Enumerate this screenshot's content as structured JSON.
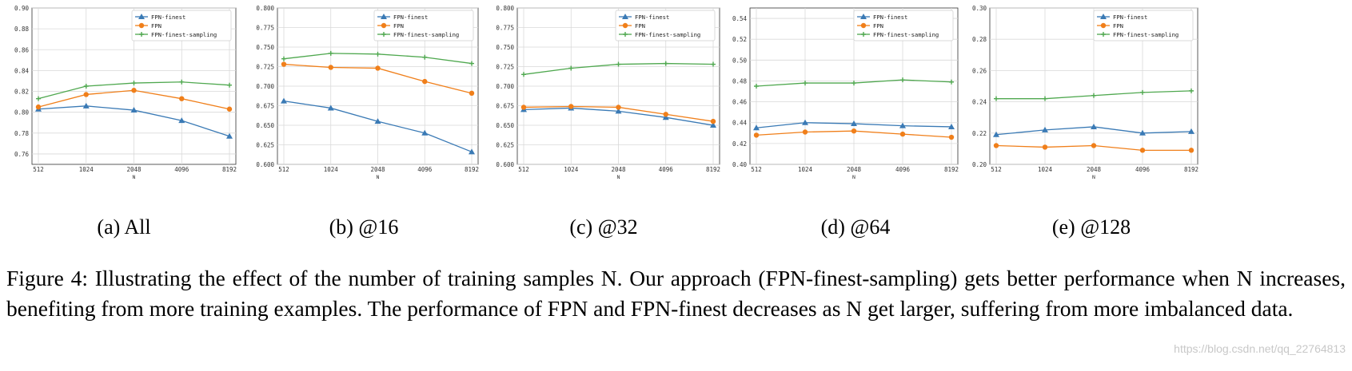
{
  "chart_data": [
    {
      "type": "line",
      "subcaption": "(a) All",
      "x": [
        "512",
        "1024",
        "2048",
        "4096",
        "8192"
      ],
      "xlabel": "N",
      "ylim": [
        0.75,
        0.9
      ],
      "yticks": [
        "0.76",
        "0.78",
        "0.80",
        "0.82",
        "0.84",
        "0.86",
        "0.88",
        "0.90"
      ],
      "grid": true,
      "legend_position": "top-right",
      "series": [
        {
          "name": "FPN-finest",
          "values": [
            0.803,
            0.806,
            0.802,
            0.792,
            0.777
          ]
        },
        {
          "name": "FPN",
          "values": [
            0.805,
            0.817,
            0.821,
            0.813,
            0.803
          ]
        },
        {
          "name": "FPN-finest-sampling",
          "values": [
            0.813,
            0.825,
            0.828,
            0.829,
            0.826
          ]
        }
      ]
    },
    {
      "type": "line",
      "subcaption": "(b) @16",
      "x": [
        "512",
        "1024",
        "2048",
        "4096",
        "8192"
      ],
      "xlabel": "N",
      "ylim": [
        0.6,
        0.8
      ],
      "yticks": [
        "0.600",
        "0.625",
        "0.650",
        "0.675",
        "0.700",
        "0.725",
        "0.750",
        "0.775",
        "0.800"
      ],
      "grid": true,
      "legend_position": "top-right",
      "series": [
        {
          "name": "FPN-finest",
          "values": [
            0.681,
            0.672,
            0.655,
            0.64,
            0.616
          ]
        },
        {
          "name": "FPN",
          "values": [
            0.728,
            0.724,
            0.723,
            0.706,
            0.691
          ]
        },
        {
          "name": "FPN-finest-sampling",
          "values": [
            0.735,
            0.742,
            0.741,
            0.737,
            0.729
          ]
        }
      ]
    },
    {
      "type": "line",
      "subcaption": "(c) @32",
      "x": [
        "512",
        "1024",
        "2048",
        "4096",
        "8192"
      ],
      "xlabel": "N",
      "ylim": [
        0.6,
        0.8
      ],
      "yticks": [
        "0.600",
        "0.625",
        "0.650",
        "0.675",
        "0.700",
        "0.725",
        "0.750",
        "0.775",
        "0.800"
      ],
      "grid": true,
      "legend_position": "top-right",
      "series": [
        {
          "name": "FPN-finest",
          "values": [
            0.67,
            0.672,
            0.668,
            0.66,
            0.65
          ]
        },
        {
          "name": "FPN",
          "values": [
            0.673,
            0.674,
            0.673,
            0.664,
            0.655
          ]
        },
        {
          "name": "FPN-finest-sampling",
          "values": [
            0.715,
            0.723,
            0.728,
            0.729,
            0.728
          ]
        }
      ]
    },
    {
      "type": "line",
      "subcaption": "(d) @64",
      "x": [
        "512",
        "1024",
        "2048",
        "4096",
        "8192"
      ],
      "xlabel": "N",
      "ylim": [
        0.4,
        0.55
      ],
      "yticks": [
        "0.40",
        "0.42",
        "0.44",
        "0.46",
        "0.48",
        "0.50",
        "0.52",
        "0.54"
      ],
      "grid": true,
      "legend_position": "top-right",
      "series": [
        {
          "name": "FPN-finest",
          "values": [
            0.435,
            0.44,
            0.439,
            0.437,
            0.436
          ]
        },
        {
          "name": "FPN",
          "values": [
            0.428,
            0.431,
            0.432,
            0.429,
            0.426
          ]
        },
        {
          "name": "FPN-finest-sampling",
          "values": [
            0.475,
            0.478,
            0.478,
            0.481,
            0.479
          ]
        }
      ]
    },
    {
      "type": "line",
      "subcaption": "(e) @128",
      "x": [
        "512",
        "1024",
        "2048",
        "4096",
        "8192"
      ],
      "xlabel": "N",
      "ylim": [
        0.2,
        0.3
      ],
      "yticks": [
        "0.20",
        "0.22",
        "0.24",
        "0.26",
        "0.28",
        "0.30"
      ],
      "grid": true,
      "legend_position": "top-right",
      "series": [
        {
          "name": "FPN-finest",
          "values": [
            0.219,
            0.222,
            0.224,
            0.22,
            0.221
          ]
        },
        {
          "name": "FPN",
          "values": [
            0.212,
            0.211,
            0.212,
            0.209,
            0.209
          ]
        },
        {
          "name": "FPN-finest-sampling",
          "values": [
            0.242,
            0.242,
            0.244,
            0.246,
            0.247
          ]
        }
      ]
    }
  ],
  "series_colors": [
    "#3a7ab5",
    "#f07f1a",
    "#4fa84f"
  ],
  "series_markers": [
    "triangle",
    "circle",
    "plus"
  ],
  "caption": {
    "text": "Figure 4: Illustrating the effect of the number of training samples N. Our approach (FPN-finest-sampling) gets better performance when N increases, benefiting from more training examples. The performance of FPN and FPN-finest decreases as N get larger, suffering from more imbalanced data."
  },
  "watermark": "https://blog.csdn.net/qq_22764813"
}
